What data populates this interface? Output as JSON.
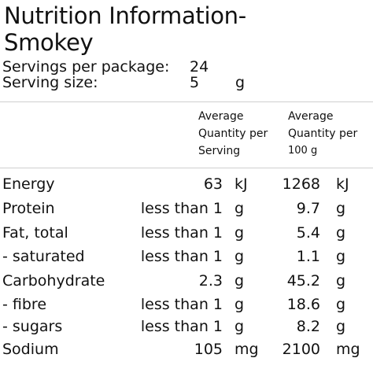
{
  "title": {
    "line1": "Nutrition Information-",
    "line2": "Smokey"
  },
  "servings": {
    "per_package_label": "Servings per package:",
    "per_package_value": "24",
    "size_label": "Serving size:",
    "size_value": "5",
    "size_unit": "g"
  },
  "columns": {
    "serving": [
      "Average",
      "Quantity per",
      "Serving"
    ],
    "per100": [
      "Average",
      "Quantity per",
      "100 g"
    ]
  },
  "rows": [
    {
      "name": "Energy",
      "serving": "63",
      "serving_unit": "kJ",
      "per100": "1268",
      "per100_unit": "kJ"
    },
    {
      "name": "Protein",
      "serving": "less than 1",
      "serving_unit": "g",
      "per100": "9.7",
      "per100_unit": "g"
    },
    {
      "name": "Fat, total",
      "serving": "less than 1",
      "serving_unit": "g",
      "per100": "5.4",
      "per100_unit": "g"
    },
    {
      "name": "- saturated",
      "serving": "less than 1",
      "serving_unit": "g",
      "per100": "1.1",
      "per100_unit": "g"
    },
    {
      "name": "Carbohydrate",
      "serving": "2.3",
      "serving_unit": "g",
      "per100": "45.2",
      "per100_unit": "g"
    },
    {
      "name": "- fibre",
      "serving": "less than 1",
      "serving_unit": "g",
      "per100": "18.6",
      "per100_unit": "g"
    },
    {
      "name": "- sugars",
      "serving": "less than 1",
      "serving_unit": "g",
      "per100": "8.2",
      "per100_unit": "g"
    },
    {
      "name": "Sodium",
      "serving": "105",
      "serving_unit": "mg",
      "per100": "2100",
      "per100_unit": "mg"
    }
  ]
}
